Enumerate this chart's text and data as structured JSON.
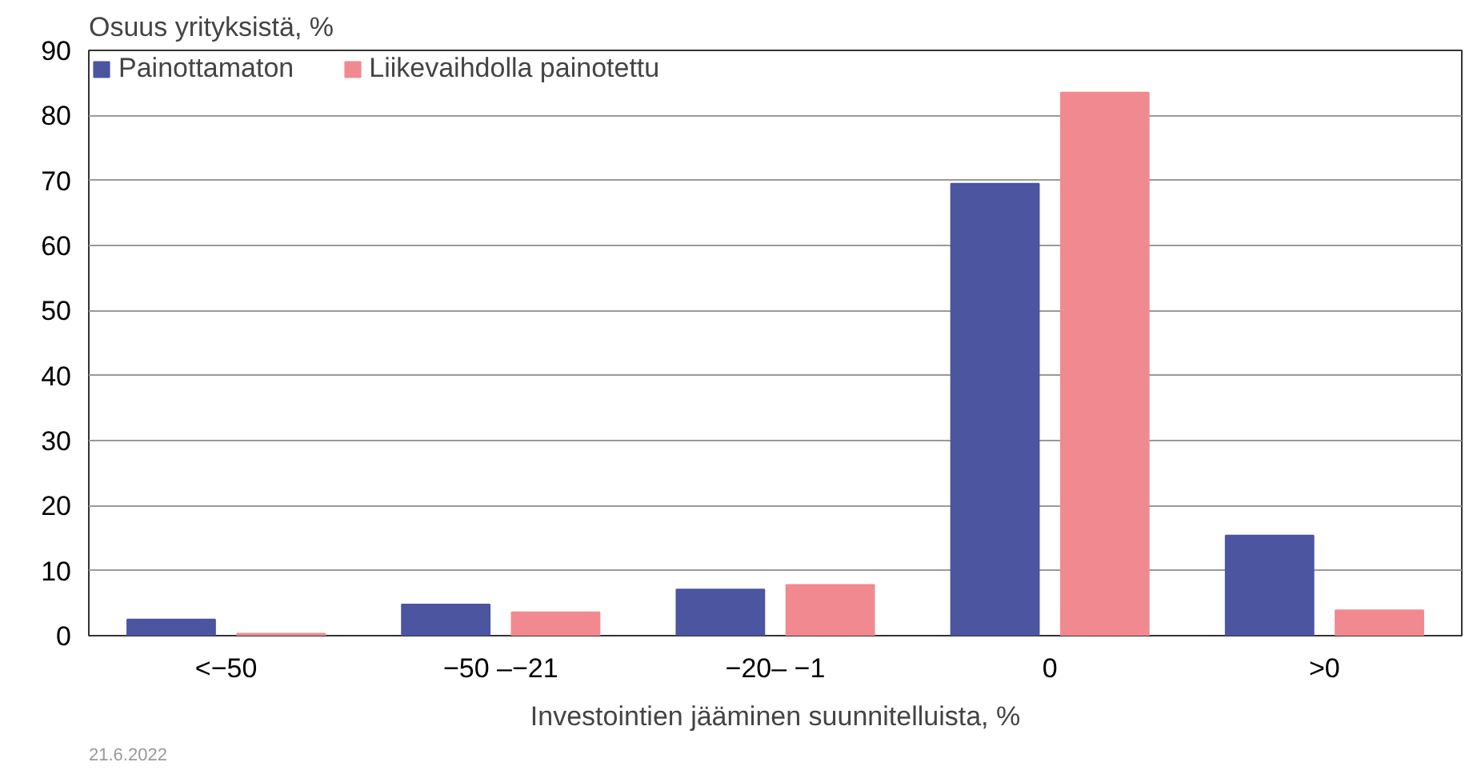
{
  "chart_data": {
    "type": "bar",
    "ylabel": "Osuus yrityksistä, %",
    "xlabel": "Investointien jääminen suunnitelluista, %",
    "categories": [
      "<−50",
      "−50 –−21",
      "−20– −1",
      "0",
      ">0"
    ],
    "series": [
      {
        "name": "Painottamaton",
        "color": "#4b55a0",
        "values": [
          2.5,
          4.8,
          7.1,
          69.5,
          15.4
        ]
      },
      {
        "name": "Liikevaihdolla painotettu",
        "color": "#f08a90",
        "values": [
          0.3,
          3.6,
          7.8,
          83.5,
          3.9
        ]
      }
    ],
    "ylim": [
      0,
      90
    ],
    "yticks": [
      0,
      10,
      20,
      30,
      40,
      50,
      60,
      70,
      80,
      90
    ],
    "grid": "y",
    "legend": "top left",
    "annotations": [
      "21.6.2022"
    ]
  }
}
